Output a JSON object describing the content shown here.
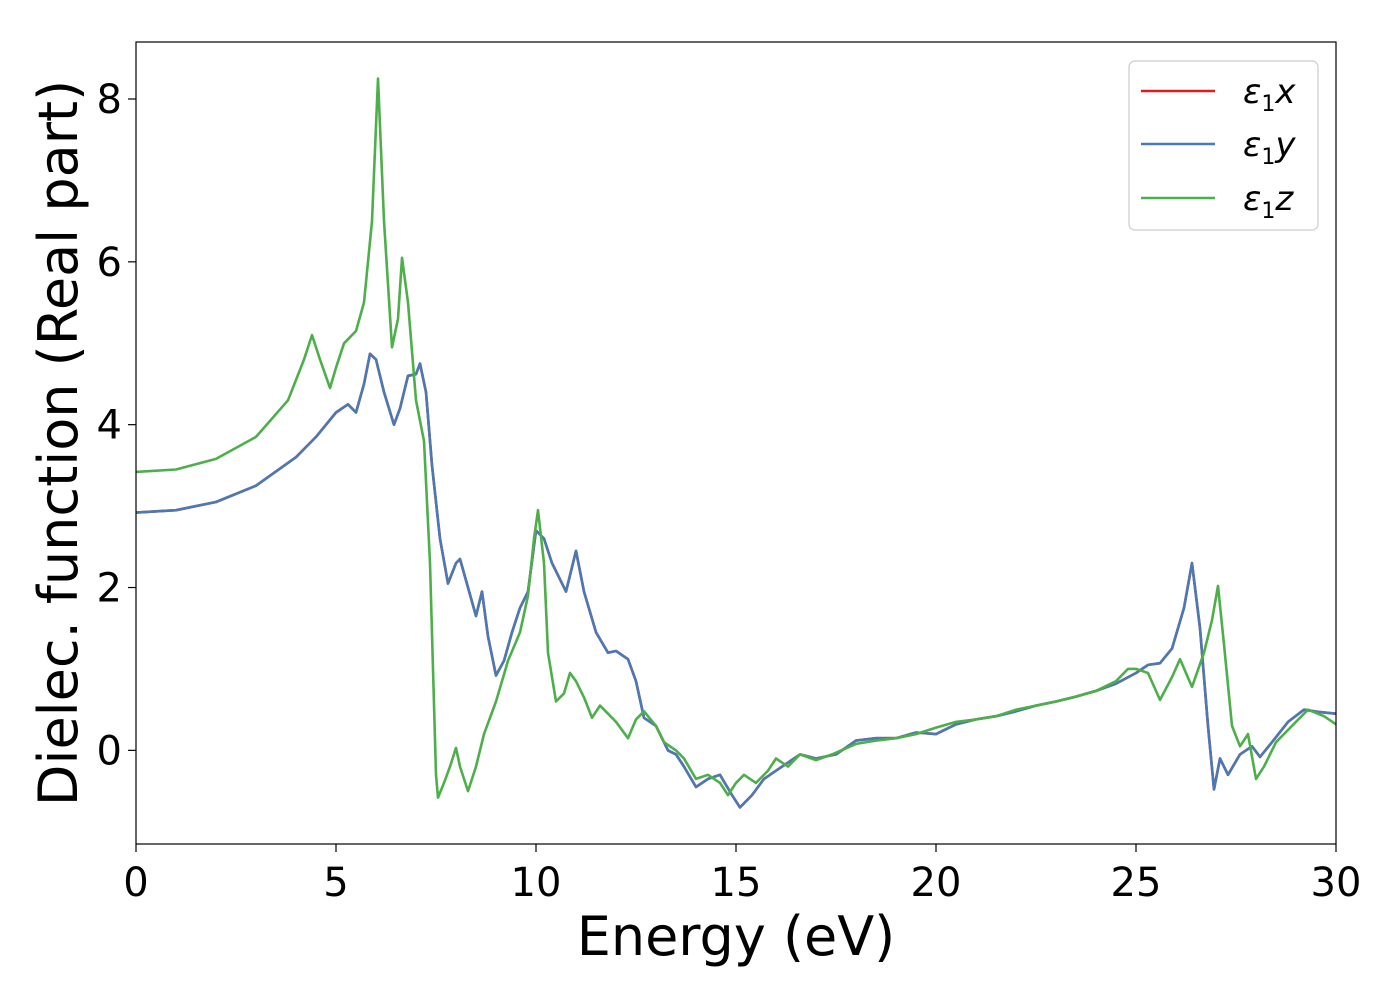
{
  "chart_data": {
    "type": "line",
    "xlabel": "Energy (eV)",
    "ylabel": "Dielec. function (Real part)",
    "xlim": [
      0,
      30
    ],
    "ylim": [
      -1.15,
      8.7
    ],
    "xticks": [
      0,
      5,
      10,
      15,
      20,
      25,
      30
    ],
    "yticks": [
      0,
      2,
      4,
      6,
      8
    ],
    "grid": false,
    "legend": "top-right",
    "series": [
      {
        "name": "ε1x",
        "label_main": "ε",
        "label_sub": "1",
        "label_axis": "x",
        "color": "#e41a1c",
        "points": [
          [
            0,
            2.92
          ],
          [
            1,
            2.95
          ],
          [
            2,
            3.05
          ],
          [
            3,
            3.25
          ],
          [
            4,
            3.6
          ],
          [
            4.5,
            3.85
          ],
          [
            5,
            4.15
          ],
          [
            5.3,
            4.25
          ],
          [
            5.5,
            4.15
          ],
          [
            5.7,
            4.5
          ],
          [
            5.85,
            4.87
          ],
          [
            6,
            4.8
          ],
          [
            6.2,
            4.4
          ],
          [
            6.45,
            4.0
          ],
          [
            6.6,
            4.2
          ],
          [
            6.8,
            4.6
          ],
          [
            7.0,
            4.62
          ],
          [
            7.1,
            4.75
          ],
          [
            7.25,
            4.4
          ],
          [
            7.4,
            3.5
          ],
          [
            7.6,
            2.6
          ],
          [
            7.8,
            2.05
          ],
          [
            8.0,
            2.3
          ],
          [
            8.1,
            2.35
          ],
          [
            8.3,
            2.0
          ],
          [
            8.5,
            1.65
          ],
          [
            8.65,
            1.95
          ],
          [
            8.8,
            1.4
          ],
          [
            9.0,
            0.92
          ],
          [
            9.2,
            1.1
          ],
          [
            9.4,
            1.45
          ],
          [
            9.6,
            1.75
          ],
          [
            9.8,
            1.95
          ],
          [
            10.0,
            2.7
          ],
          [
            10.2,
            2.6
          ],
          [
            10.4,
            2.3
          ],
          [
            10.75,
            1.95
          ],
          [
            11.0,
            2.45
          ],
          [
            11.2,
            1.95
          ],
          [
            11.5,
            1.45
          ],
          [
            11.8,
            1.2
          ],
          [
            12.0,
            1.22
          ],
          [
            12.3,
            1.12
          ],
          [
            12.5,
            0.85
          ],
          [
            12.7,
            0.4
          ],
          [
            13.0,
            0.3
          ],
          [
            13.3,
            0.0
          ],
          [
            13.5,
            -0.05
          ],
          [
            13.7,
            -0.2
          ],
          [
            14.0,
            -0.45
          ],
          [
            14.3,
            -0.35
          ],
          [
            14.6,
            -0.3
          ],
          [
            14.9,
            -0.55
          ],
          [
            15.1,
            -0.7
          ],
          [
            15.4,
            -0.55
          ],
          [
            15.7,
            -0.35
          ],
          [
            16.0,
            -0.25
          ],
          [
            16.3,
            -0.15
          ],
          [
            16.6,
            -0.05
          ],
          [
            17.0,
            -0.1
          ],
          [
            17.5,
            -0.05
          ],
          [
            18.0,
            0.12
          ],
          [
            18.5,
            0.15
          ],
          [
            19.0,
            0.15
          ],
          [
            19.5,
            0.22
          ],
          [
            20.0,
            0.2
          ],
          [
            20.5,
            0.32
          ],
          [
            21.0,
            0.38
          ],
          [
            21.5,
            0.42
          ],
          [
            22.0,
            0.48
          ],
          [
            22.5,
            0.55
          ],
          [
            23.0,
            0.6
          ],
          [
            23.5,
            0.66
          ],
          [
            24.0,
            0.73
          ],
          [
            24.5,
            0.82
          ],
          [
            25.0,
            0.95
          ],
          [
            25.3,
            1.05
          ],
          [
            25.6,
            1.07
          ],
          [
            25.9,
            1.25
          ],
          [
            26.2,
            1.75
          ],
          [
            26.4,
            2.3
          ],
          [
            26.6,
            1.5
          ],
          [
            26.8,
            0.3
          ],
          [
            26.95,
            -0.48
          ],
          [
            27.1,
            -0.1
          ],
          [
            27.3,
            -0.3
          ],
          [
            27.6,
            -0.05
          ],
          [
            27.9,
            0.05
          ],
          [
            28.1,
            -0.08
          ],
          [
            28.4,
            0.1
          ],
          [
            28.8,
            0.35
          ],
          [
            29.2,
            0.5
          ],
          [
            29.6,
            0.47
          ],
          [
            30.0,
            0.45
          ]
        ]
      },
      {
        "name": "ε1y",
        "label_main": "ε",
        "label_sub": "1",
        "label_axis": "y",
        "color": "#4a7ab5",
        "points": [
          [
            0,
            2.92
          ],
          [
            1,
            2.95
          ],
          [
            2,
            3.05
          ],
          [
            3,
            3.25
          ],
          [
            4,
            3.6
          ],
          [
            4.5,
            3.85
          ],
          [
            5,
            4.15
          ],
          [
            5.3,
            4.25
          ],
          [
            5.5,
            4.15
          ],
          [
            5.7,
            4.5
          ],
          [
            5.85,
            4.87
          ],
          [
            6,
            4.8
          ],
          [
            6.2,
            4.4
          ],
          [
            6.45,
            4.0
          ],
          [
            6.6,
            4.2
          ],
          [
            6.8,
            4.6
          ],
          [
            7.0,
            4.62
          ],
          [
            7.1,
            4.75
          ],
          [
            7.25,
            4.4
          ],
          [
            7.4,
            3.5
          ],
          [
            7.6,
            2.6
          ],
          [
            7.8,
            2.05
          ],
          [
            8.0,
            2.3
          ],
          [
            8.1,
            2.35
          ],
          [
            8.3,
            2.0
          ],
          [
            8.5,
            1.65
          ],
          [
            8.65,
            1.95
          ],
          [
            8.8,
            1.4
          ],
          [
            9.0,
            0.92
          ],
          [
            9.2,
            1.1
          ],
          [
            9.4,
            1.45
          ],
          [
            9.6,
            1.75
          ],
          [
            9.8,
            1.95
          ],
          [
            10.0,
            2.7
          ],
          [
            10.2,
            2.6
          ],
          [
            10.4,
            2.3
          ],
          [
            10.75,
            1.95
          ],
          [
            11.0,
            2.45
          ],
          [
            11.2,
            1.95
          ],
          [
            11.5,
            1.45
          ],
          [
            11.8,
            1.2
          ],
          [
            12.0,
            1.22
          ],
          [
            12.3,
            1.12
          ],
          [
            12.5,
            0.85
          ],
          [
            12.7,
            0.4
          ],
          [
            13.0,
            0.3
          ],
          [
            13.3,
            0.0
          ],
          [
            13.5,
            -0.05
          ],
          [
            13.7,
            -0.2
          ],
          [
            14.0,
            -0.45
          ],
          [
            14.3,
            -0.35
          ],
          [
            14.6,
            -0.3
          ],
          [
            14.9,
            -0.55
          ],
          [
            15.1,
            -0.7
          ],
          [
            15.4,
            -0.55
          ],
          [
            15.7,
            -0.35
          ],
          [
            16.0,
            -0.25
          ],
          [
            16.3,
            -0.15
          ],
          [
            16.6,
            -0.05
          ],
          [
            17.0,
            -0.1
          ],
          [
            17.5,
            -0.05
          ],
          [
            18.0,
            0.12
          ],
          [
            18.5,
            0.15
          ],
          [
            19.0,
            0.15
          ],
          [
            19.5,
            0.22
          ],
          [
            20.0,
            0.2
          ],
          [
            20.5,
            0.32
          ],
          [
            21.0,
            0.38
          ],
          [
            21.5,
            0.42
          ],
          [
            22.0,
            0.48
          ],
          [
            22.5,
            0.55
          ],
          [
            23.0,
            0.6
          ],
          [
            23.5,
            0.66
          ],
          [
            24.0,
            0.73
          ],
          [
            24.5,
            0.82
          ],
          [
            25.0,
            0.95
          ],
          [
            25.3,
            1.05
          ],
          [
            25.6,
            1.07
          ],
          [
            25.9,
            1.25
          ],
          [
            26.2,
            1.75
          ],
          [
            26.4,
            2.3
          ],
          [
            26.6,
            1.5
          ],
          [
            26.8,
            0.3
          ],
          [
            26.95,
            -0.48
          ],
          [
            27.1,
            -0.1
          ],
          [
            27.3,
            -0.3
          ],
          [
            27.6,
            -0.05
          ],
          [
            27.9,
            0.05
          ],
          [
            28.1,
            -0.08
          ],
          [
            28.4,
            0.1
          ],
          [
            28.8,
            0.35
          ],
          [
            29.2,
            0.5
          ],
          [
            29.6,
            0.47
          ],
          [
            30.0,
            0.45
          ]
        ]
      },
      {
        "name": "ε1z",
        "label_main": "ε",
        "label_sub": "1",
        "label_axis": "z",
        "color": "#4daf4a",
        "points": [
          [
            0,
            3.42
          ],
          [
            1,
            3.45
          ],
          [
            2,
            3.58
          ],
          [
            3,
            3.85
          ],
          [
            3.8,
            4.3
          ],
          [
            4.2,
            4.8
          ],
          [
            4.4,
            5.1
          ],
          [
            4.6,
            4.8
          ],
          [
            4.85,
            4.45
          ],
          [
            5.0,
            4.7
          ],
          [
            5.2,
            5.0
          ],
          [
            5.5,
            5.15
          ],
          [
            5.7,
            5.5
          ],
          [
            5.9,
            6.5
          ],
          [
            6.05,
            8.25
          ],
          [
            6.2,
            6.5
          ],
          [
            6.4,
            4.95
          ],
          [
            6.55,
            5.3
          ],
          [
            6.65,
            6.05
          ],
          [
            6.8,
            5.5
          ],
          [
            7.0,
            4.3
          ],
          [
            7.2,
            3.8
          ],
          [
            7.35,
            2.3
          ],
          [
            7.5,
            -0.3
          ],
          [
            7.55,
            -0.58
          ],
          [
            7.7,
            -0.4
          ],
          [
            7.85,
            -0.2
          ],
          [
            8.0,
            0.03
          ],
          [
            8.1,
            -0.2
          ],
          [
            8.3,
            -0.5
          ],
          [
            8.5,
            -0.2
          ],
          [
            8.7,
            0.2
          ],
          [
            9.0,
            0.6
          ],
          [
            9.3,
            1.1
          ],
          [
            9.6,
            1.45
          ],
          [
            9.8,
            1.9
          ],
          [
            9.95,
            2.6
          ],
          [
            10.05,
            2.95
          ],
          [
            10.2,
            2.3
          ],
          [
            10.3,
            1.2
          ],
          [
            10.5,
            0.6
          ],
          [
            10.7,
            0.7
          ],
          [
            10.85,
            0.95
          ],
          [
            11.0,
            0.85
          ],
          [
            11.2,
            0.65
          ],
          [
            11.4,
            0.4
          ],
          [
            11.6,
            0.55
          ],
          [
            11.8,
            0.45
          ],
          [
            12.0,
            0.35
          ],
          [
            12.3,
            0.15
          ],
          [
            12.5,
            0.38
          ],
          [
            12.7,
            0.48
          ],
          [
            13.0,
            0.3
          ],
          [
            13.2,
            0.1
          ],
          [
            13.5,
            0.0
          ],
          [
            13.7,
            -0.1
          ],
          [
            14.0,
            -0.35
          ],
          [
            14.3,
            -0.3
          ],
          [
            14.6,
            -0.4
          ],
          [
            14.8,
            -0.55
          ],
          [
            15.0,
            -0.4
          ],
          [
            15.2,
            -0.3
          ],
          [
            15.5,
            -0.4
          ],
          [
            15.8,
            -0.25
          ],
          [
            16.0,
            -0.1
          ],
          [
            16.3,
            -0.2
          ],
          [
            16.6,
            -0.05
          ],
          [
            17.0,
            -0.12
          ],
          [
            17.4,
            -0.05
          ],
          [
            18.0,
            0.08
          ],
          [
            18.5,
            0.12
          ],
          [
            19.0,
            0.15
          ],
          [
            19.5,
            0.2
          ],
          [
            20.0,
            0.28
          ],
          [
            20.5,
            0.35
          ],
          [
            21.0,
            0.38
          ],
          [
            21.5,
            0.42
          ],
          [
            22.0,
            0.5
          ],
          [
            22.5,
            0.55
          ],
          [
            23.0,
            0.6
          ],
          [
            23.5,
            0.66
          ],
          [
            24.0,
            0.73
          ],
          [
            24.5,
            0.85
          ],
          [
            24.8,
            1.0
          ],
          [
            25.0,
            1.0
          ],
          [
            25.3,
            0.95
          ],
          [
            25.6,
            0.62
          ],
          [
            25.9,
            0.9
          ],
          [
            26.1,
            1.12
          ],
          [
            26.4,
            0.78
          ],
          [
            26.7,
            1.2
          ],
          [
            26.9,
            1.6
          ],
          [
            27.05,
            2.02
          ],
          [
            27.2,
            1.3
          ],
          [
            27.4,
            0.3
          ],
          [
            27.6,
            0.05
          ],
          [
            27.8,
            0.2
          ],
          [
            28.0,
            -0.35
          ],
          [
            28.2,
            -0.2
          ],
          [
            28.5,
            0.1
          ],
          [
            28.9,
            0.3
          ],
          [
            29.3,
            0.5
          ],
          [
            29.7,
            0.42
          ],
          [
            30.0,
            0.32
          ]
        ]
      }
    ]
  }
}
